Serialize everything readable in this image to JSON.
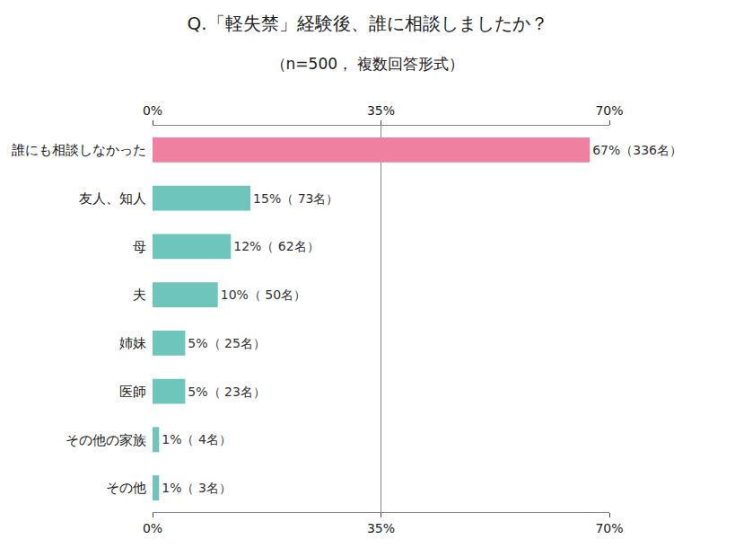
{
  "chart_data": {
    "type": "bar",
    "orientation": "horizontal",
    "title": "Q.「軽失禁」経験後、誰に相談しましたか？",
    "subtitle": "（n=500， 複数回答形式）",
    "categories": [
      "誰にも相談しなかった",
      "友人、知人",
      "母",
      "夫",
      "姉妹",
      "医師",
      "その他の家族",
      "その他"
    ],
    "values": [
      67,
      15,
      12,
      10,
      5,
      5,
      1,
      1
    ],
    "value_labels": [
      "67%（336名）",
      "15%（ 73名）",
      "12%（ 62名）",
      "10%（ 50名）",
      "5%（ 25名）",
      "5%（ 23名）",
      "1%（ 4名）",
      "1%（ 3名）"
    ],
    "colors": [
      "#F080A0",
      "#6DC5BB",
      "#6DC5BB",
      "#6DC5BB",
      "#6DC5BB",
      "#6DC5BB",
      "#6DC5BB",
      "#6DC5BB"
    ],
    "xlim": [
      0,
      70
    ],
    "xticks": [
      {
        "value": 0,
        "label": "0%"
      },
      {
        "value": 35,
        "label": "35%"
      },
      {
        "value": 70,
        "label": "70%"
      }
    ],
    "grid": true,
    "data_labels": true
  }
}
